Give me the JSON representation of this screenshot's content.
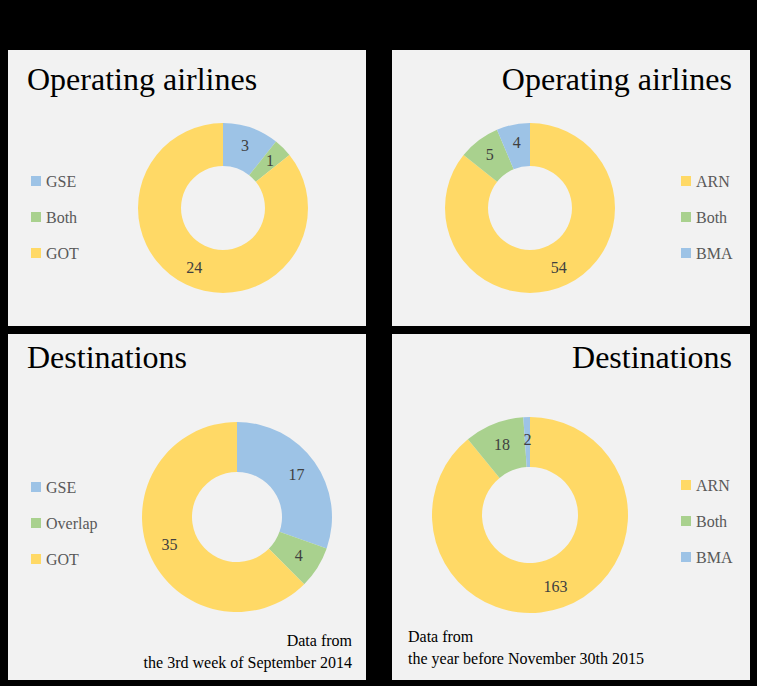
{
  "chart_data": [
    {
      "type": "pie",
      "title": "Operating airlines",
      "categories": [
        "GSE",
        "Both",
        "GOT"
      ],
      "values": [
        3,
        1,
        24
      ],
      "colors": [
        "#9dc3e6",
        "#a9d18e",
        "#ffd966"
      ],
      "data_labels": true,
      "legend": "left"
    },
    {
      "type": "pie",
      "title": "Operating airlines",
      "categories": [
        "ARN",
        "Both",
        "BMA"
      ],
      "values": [
        54,
        5,
        4
      ],
      "colors": [
        "#ffd966",
        "#a9d18e",
        "#9dc3e6"
      ],
      "data_labels": true,
      "legend": "right"
    },
    {
      "type": "pie",
      "title": "Destinations",
      "categories": [
        "GSE",
        "Overlap",
        "GOT"
      ],
      "values": [
        17,
        4,
        35
      ],
      "colors": [
        "#9dc3e6",
        "#a9d18e",
        "#ffd966"
      ],
      "data_labels": true,
      "legend": "left",
      "annotations": [
        "Data from",
        "the 3rd week of September 2014"
      ]
    },
    {
      "type": "pie",
      "title": "Destinations",
      "categories": [
        "ARN",
        "Both",
        "BMA"
      ],
      "values": [
        163,
        18,
        2
      ],
      "colors": [
        "#ffd966",
        "#a9d18e",
        "#9dc3e6"
      ],
      "data_labels": true,
      "legend": "right",
      "annotations": [
        "Data from",
        "the year before November 30th 2015"
      ]
    }
  ]
}
